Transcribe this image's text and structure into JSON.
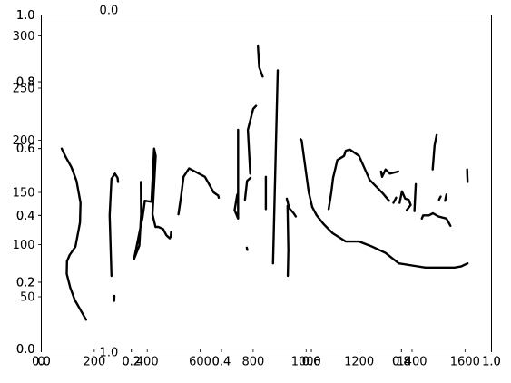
{
  "chart_data": {
    "type": "line",
    "title": "",
    "grid": false,
    "axes": [
      {
        "name": "pixel-axes",
        "xlim": [
          0,
          1700
        ],
        "ylim": [
          0,
          320
        ],
        "x_inverted": false,
        "y_inverted": false,
        "xticks": [
          0,
          200,
          400,
          600,
          800,
          1000,
          1200,
          1400,
          1600
        ],
        "xticklabels": [
          "0",
          "200",
          "400",
          "600",
          "800",
          "1000",
          "1200",
          "1400",
          "1600"
        ],
        "yticks": [
          50,
          100,
          150,
          200,
          250,
          300
        ],
        "yticklabels": [
          "50",
          "100",
          "150",
          "200",
          "250",
          "300"
        ]
      },
      {
        "name": "base-axes-a",
        "xlim": [
          0,
          1
        ],
        "ylim": [
          0,
          1
        ],
        "xticks": [
          0,
          0.2,
          0.4,
          0.6,
          0.8,
          1.0
        ],
        "xticklabels": [
          "0.0",
          "0.2",
          "0.4",
          "0.6",
          "0.8",
          "1.0"
        ],
        "yticks": [
          0,
          0.2,
          0.4,
          0.6,
          0.8,
          1.0
        ],
        "yticklabels": [
          "0.0",
          "0.2",
          "0.4",
          "0.6",
          "0.8",
          "1.0"
        ]
      },
      {
        "name": "base-axes-b",
        "xlim": [
          0,
          1
        ],
        "ylim": [
          0,
          1
        ],
        "xticks": [
          0,
          0.2,
          0.4,
          0.6,
          0.8,
          1.0
        ],
        "xticklabels": [
          "0.0",
          "0.2",
          "0.4",
          "0.6",
          "0.8",
          "1.0"
        ],
        "yticks": [
          0,
          0.2,
          0.4,
          0.6,
          0.8,
          1.0
        ],
        "yticklabels": [
          "0.0",
          "0.2",
          "0.4",
          "0.6",
          "0.8",
          "1.0"
        ]
      }
    ],
    "stray_labels": [
      {
        "text": "0.0",
        "x": 0.15,
        "y": 1.0
      },
      {
        "text": "1.0",
        "x": 0.15,
        "y": 0.0
      }
    ],
    "line_color": "#000000",
    "series": [
      {
        "points": [
          [
            77,
            192
          ],
          [
            90,
            185
          ],
          [
            114,
            174
          ],
          [
            133,
            161
          ],
          [
            148,
            140
          ],
          [
            146,
            121
          ],
          [
            129,
            98
          ],
          [
            107,
            90
          ],
          [
            97,
            84
          ],
          [
            96,
            72
          ],
          [
            109,
            59
          ],
          [
            126,
            47
          ],
          [
            169,
            28
          ]
        ]
      },
      {
        "points": [
          [
            265,
            70
          ],
          [
            258,
            128
          ],
          [
            265,
            163
          ],
          [
            278,
            168
          ],
          [
            288,
            164
          ],
          [
            290,
            160
          ]
        ]
      },
      {
        "points": [
          [
            275,
            46
          ],
          [
            276,
            51
          ]
        ]
      },
      {
        "points": [
          [
            376,
            160
          ],
          [
            377,
            129
          ],
          [
            370,
            99
          ],
          [
            350,
            86
          ],
          [
            382,
            126
          ],
          [
            391,
            142
          ],
          [
            416,
            141
          ],
          [
            426,
            192
          ],
          [
            432,
            185
          ],
          [
            420,
            129
          ],
          [
            431,
            117
          ],
          [
            442,
            117
          ],
          [
            460,
            115
          ],
          [
            472,
            109
          ],
          [
            485,
            106
          ],
          [
            489,
            108
          ],
          [
            490,
            112
          ]
        ]
      },
      {
        "points": [
          [
            518,
            129
          ],
          [
            527,
            145
          ],
          [
            537,
            165
          ],
          [
            558,
            173
          ],
          [
            618,
            165
          ],
          [
            651,
            150
          ],
          [
            668,
            147
          ],
          [
            670,
            145
          ]
        ]
      },
      {
        "points": [
          [
            743,
            210
          ],
          [
            743,
            125
          ],
          [
            730,
            133
          ],
          [
            740,
            148
          ]
        ]
      },
      {
        "points": [
          [
            769,
            143
          ],
          [
            777,
            161
          ],
          [
            790,
            164
          ]
        ]
      },
      {
        "points": [
          [
            776,
            97
          ],
          [
            778,
            95
          ]
        ]
      },
      {
        "points": [
          [
            789,
            168
          ],
          [
            780,
            210
          ],
          [
            800,
            230
          ],
          [
            811,
            233
          ]
        ]
      },
      {
        "points": [
          [
            875,
            82
          ],
          [
            893,
            267
          ]
        ]
      },
      {
        "points": [
          [
            818,
            290
          ],
          [
            823,
            270
          ],
          [
            836,
            261
          ]
        ]
      },
      {
        "points": [
          [
            848,
            165
          ],
          [
            848,
            135
          ],
          [
            848,
            134
          ]
        ]
      },
      {
        "points": [
          [
            927,
            144
          ],
          [
            936,
            135
          ],
          [
            953,
            130
          ],
          [
            961,
            127
          ]
        ]
      },
      {
        "points": [
          [
            930,
            137
          ],
          [
            933,
            95
          ],
          [
            931,
            70
          ]
        ]
      },
      {
        "points": [
          [
            979,
            201
          ],
          [
            983,
            200
          ],
          [
            1010,
            150
          ],
          [
            1023,
            136
          ],
          [
            1040,
            128
          ],
          [
            1065,
            120
          ],
          [
            1100,
            111
          ],
          [
            1150,
            103
          ],
          [
            1200,
            103
          ],
          [
            1250,
            98
          ],
          [
            1300,
            92
          ],
          [
            1350,
            82
          ],
          [
            1400,
            80
          ],
          [
            1450,
            78
          ],
          [
            1560,
            78
          ],
          [
            1585,
            79
          ],
          [
            1610,
            82
          ]
        ]
      },
      {
        "points": [
          [
            1085,
            134
          ],
          [
            1095,
            150
          ],
          [
            1102,
            164
          ],
          [
            1118,
            181
          ],
          [
            1143,
            185
          ],
          [
            1150,
            190
          ],
          [
            1165,
            191
          ],
          [
            1200,
            185
          ],
          [
            1240,
            162
          ],
          [
            1290,
            149
          ],
          [
            1313,
            142
          ]
        ]
      },
      {
        "points": [
          [
            1283,
            170
          ],
          [
            1287,
            165
          ],
          [
            1300,
            172
          ],
          [
            1316,
            168
          ],
          [
            1348,
            170
          ]
        ]
      },
      {
        "points": [
          [
            1353,
            140
          ],
          [
            1362,
            151
          ],
          [
            1374,
            144
          ],
          [
            1387,
            143
          ],
          [
            1395,
            138
          ],
          [
            1380,
            133
          ]
        ]
      },
      {
        "points": [
          [
            1409,
            132
          ],
          [
            1414,
            158
          ]
        ]
      },
      {
        "points": [
          [
            1437,
            125
          ],
          [
            1442,
            128
          ],
          [
            1464,
            128
          ],
          [
            1479,
            130
          ],
          [
            1500,
            127
          ],
          [
            1530,
            125
          ],
          [
            1545,
            118
          ]
        ]
      },
      {
        "points": [
          [
            1478,
            172
          ],
          [
            1485,
            195
          ],
          [
            1493,
            205
          ]
        ]
      },
      {
        "points": [
          [
            1502,
            143
          ],
          [
            1508,
            146
          ]
        ]
      },
      {
        "points": [
          [
            1525,
            142
          ],
          [
            1530,
            148
          ]
        ]
      },
      {
        "points": [
          [
            1608,
            172
          ],
          [
            1609,
            166
          ],
          [
            1610,
            160
          ]
        ]
      },
      {
        "points": [
          [
            1330,
            140
          ],
          [
            1340,
            145
          ]
        ]
      }
    ]
  }
}
